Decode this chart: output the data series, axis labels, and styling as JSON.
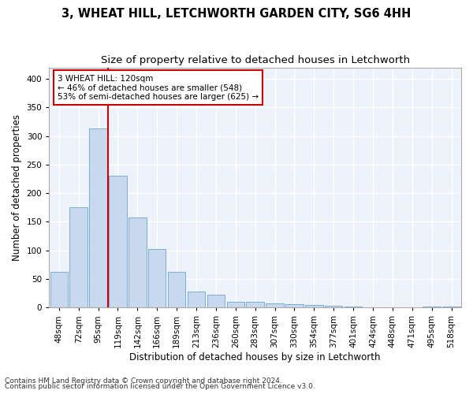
{
  "title": "3, WHEAT HILL, LETCHWORTH GARDEN CITY, SG6 4HH",
  "subtitle": "Size of property relative to detached houses in Letchworth",
  "xlabel": "Distribution of detached houses by size in Letchworth",
  "ylabel": "Number of detached properties",
  "categories": [
    "48sqm",
    "72sqm",
    "95sqm",
    "119sqm",
    "142sqm",
    "166sqm",
    "189sqm",
    "213sqm",
    "236sqm",
    "260sqm",
    "283sqm",
    "307sqm",
    "330sqm",
    "354sqm",
    "377sqm",
    "401sqm",
    "424sqm",
    "448sqm",
    "471sqm",
    "495sqm",
    "518sqm"
  ],
  "values": [
    63,
    175,
    313,
    230,
    158,
    102,
    62,
    28,
    22,
    10,
    10,
    7,
    6,
    5,
    3,
    2,
    1,
    1,
    1,
    2,
    2
  ],
  "bar_color": "#c8d8ee",
  "bar_edge_color": "#7aaed4",
  "vline_color": "#cc0000",
  "vline_index": 2.5,
  "annotation_line1": "3 WHEAT HILL: 120sqm",
  "annotation_line2": "← 46% of detached houses are smaller (548)",
  "annotation_line3": "53% of semi-detached houses are larger (625) →",
  "annotation_box_color": "#cc0000",
  "ylim": [
    0,
    420
  ],
  "yticks": [
    0,
    50,
    100,
    150,
    200,
    250,
    300,
    350,
    400
  ],
  "footer1": "Contains HM Land Registry data © Crown copyright and database right 2024.",
  "footer2": "Contains public sector information licensed under the Open Government Licence v3.0.",
  "background_color": "#eef2fb",
  "grid_color": "#ffffff",
  "fig_background": "#ffffff",
  "title_fontsize": 10.5,
  "subtitle_fontsize": 9.5,
  "xlabel_fontsize": 8.5,
  "ylabel_fontsize": 8.5,
  "tick_fontsize": 7.5,
  "footer_fontsize": 6.5
}
